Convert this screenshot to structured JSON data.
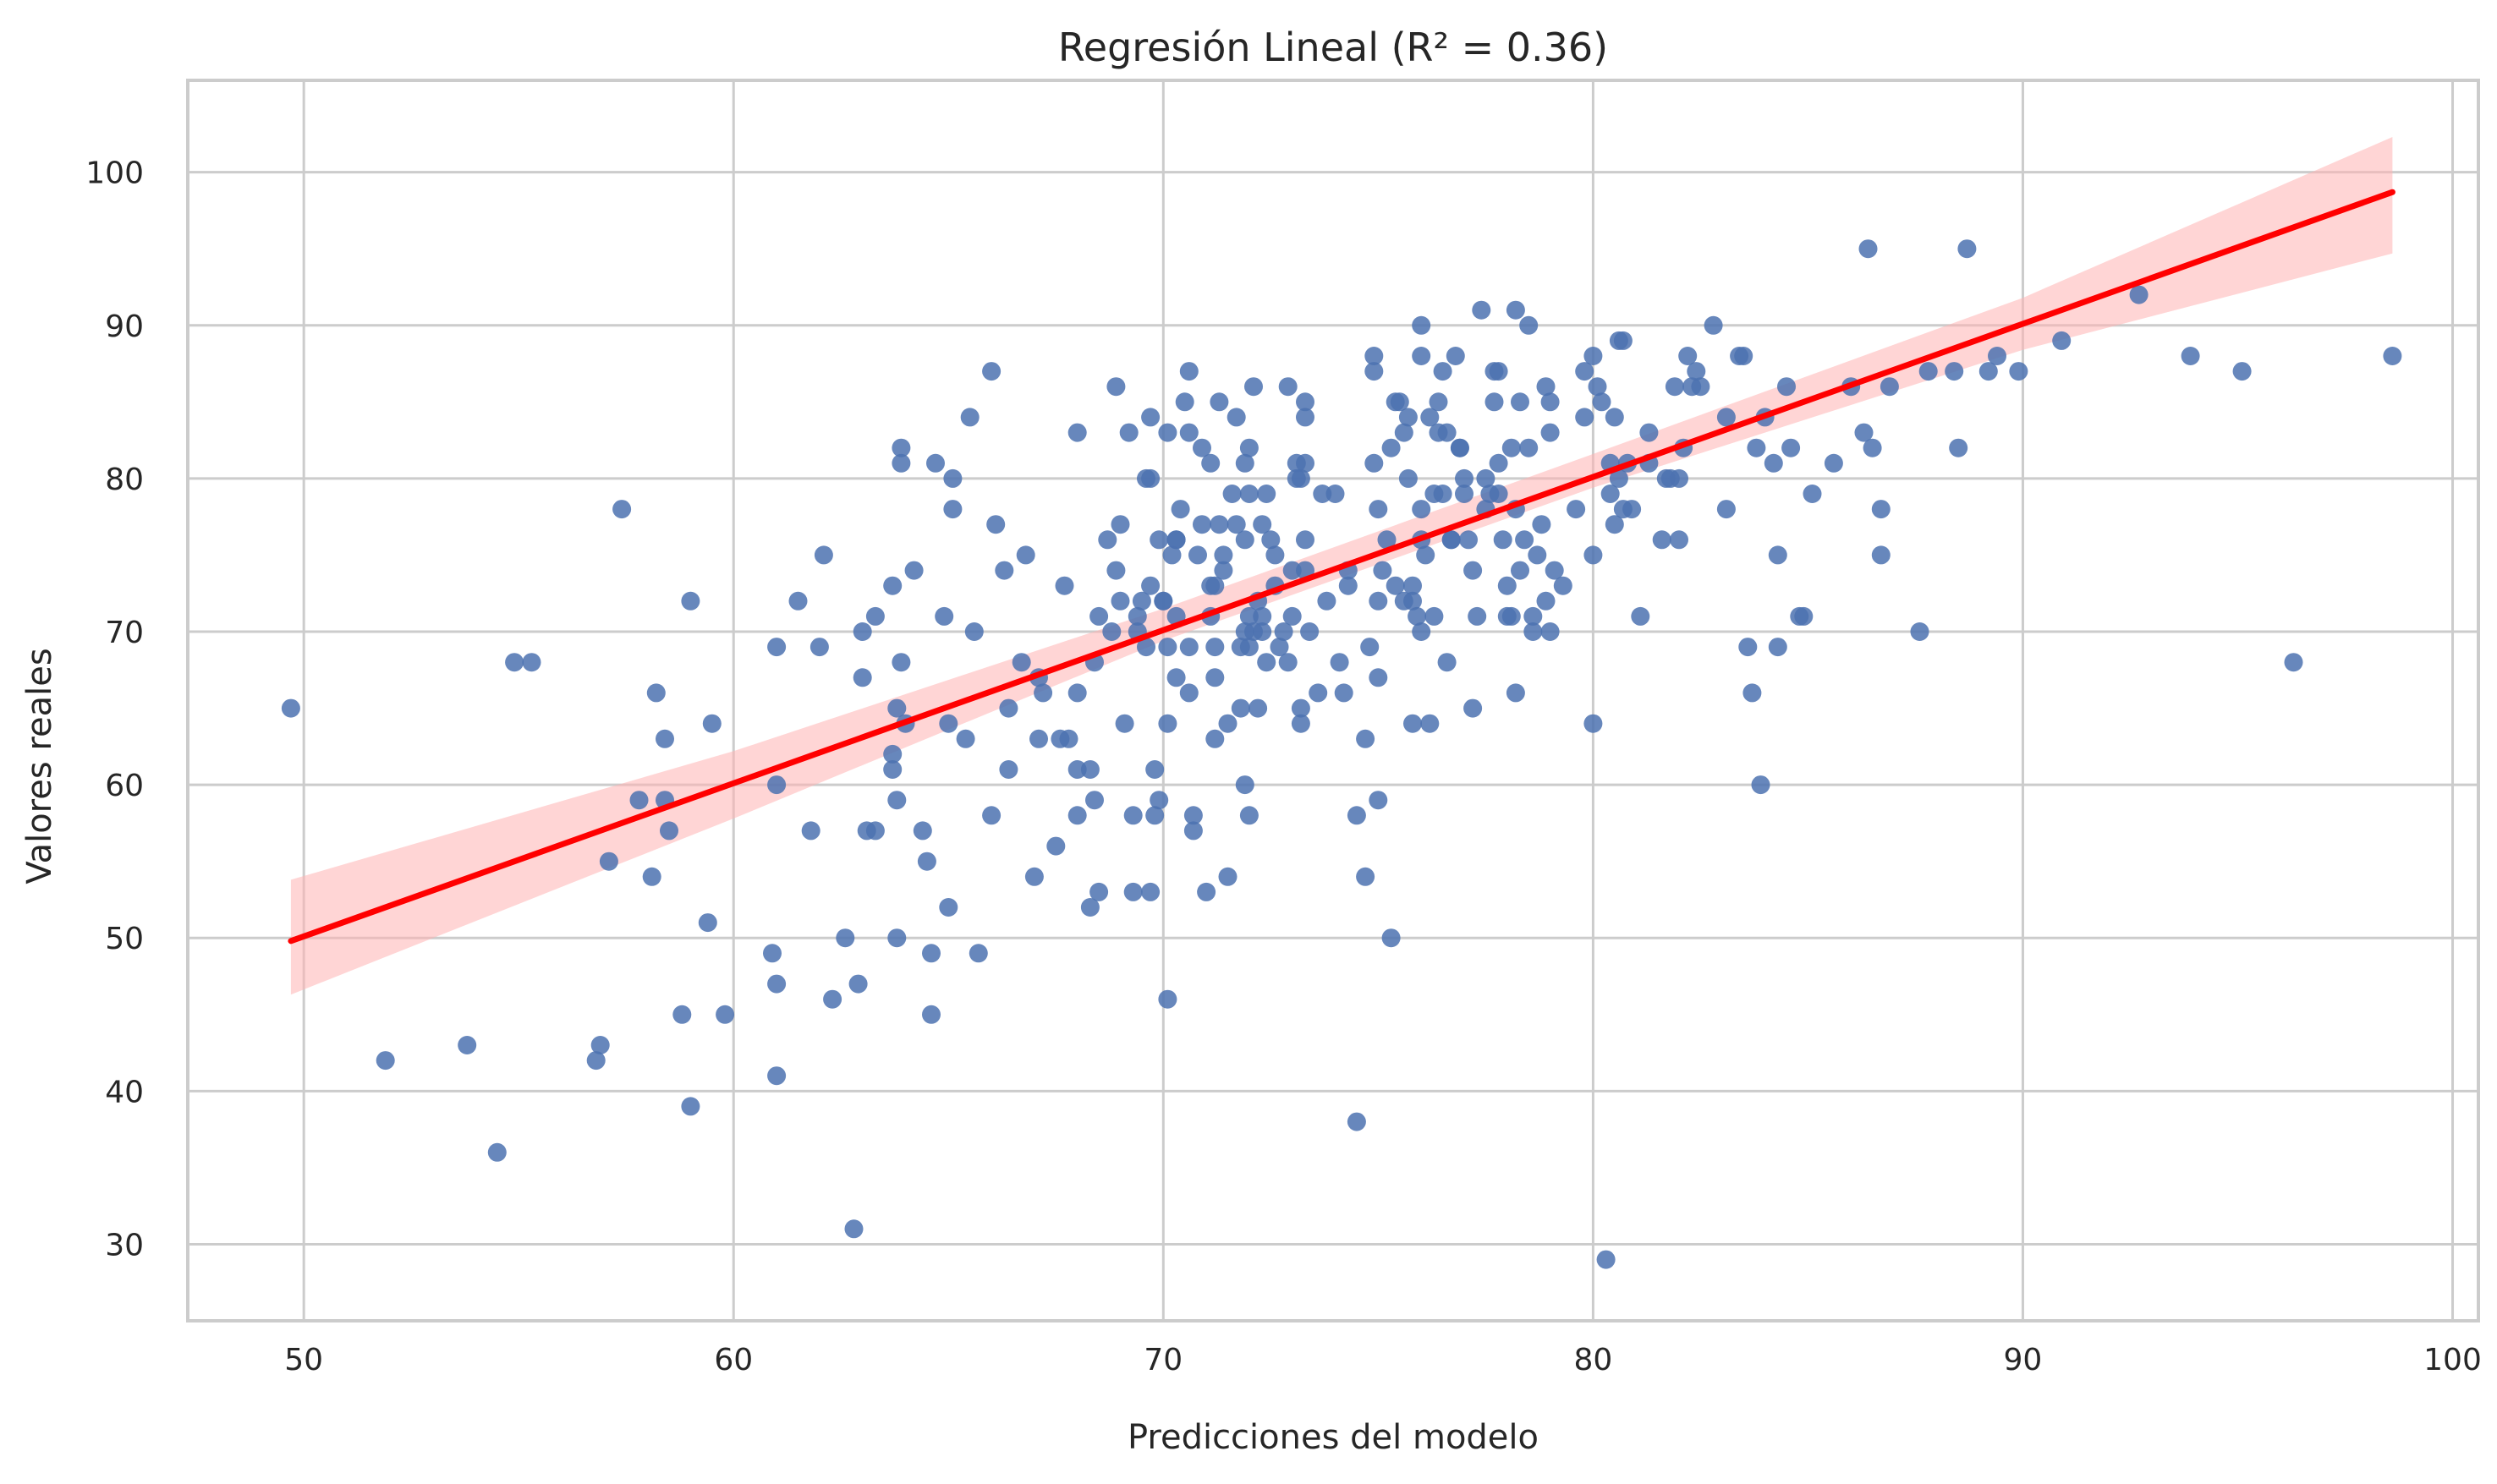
{
  "chart_data": {
    "type": "scatter",
    "title": "Regresión Lineal (R² = 0.36)",
    "xlabel": "Predicciones del modelo",
    "ylabel": "Valores reales",
    "xlim": [
      47.3,
      100.6
    ],
    "ylim": [
      25,
      106
    ],
    "xticks": [
      50,
      60,
      70,
      80,
      90,
      100
    ],
    "yticks": [
      30,
      40,
      50,
      60,
      70,
      80,
      90,
      100
    ],
    "grid": true,
    "colors": {
      "points": "#4c72b0",
      "regression_line": "#ff0000",
      "confidence_band": "#ffb3b3",
      "grid": "#cccccc",
      "frame": "#cccccc"
    },
    "regression_line": {
      "x": [
        49.7,
        98.6
      ],
      "y": [
        49.8,
        98.7
      ]
    },
    "confidence_band": {
      "x": [
        49.7,
        60,
        70,
        80,
        90,
        98.6
      ],
      "lower": [
        46.3,
        57.8,
        69.4,
        79.4,
        88.4,
        94.7
      ],
      "upper": [
        53.8,
        62.2,
        71.5,
        81.6,
        91.8,
        102.3
      ]
    },
    "points": [
      [
        49.7,
        65
      ],
      [
        51.9,
        42
      ],
      [
        53.8,
        43
      ],
      [
        54.5,
        36
      ],
      [
        54.9,
        68
      ],
      [
        55.3,
        68
      ],
      [
        56.8,
        42
      ],
      [
        56.9,
        43
      ],
      [
        57.1,
        55
      ],
      [
        57.4,
        78
      ],
      [
        57.8,
        59
      ],
      [
        58.1,
        54
      ],
      [
        58.2,
        66
      ],
      [
        58.4,
        63
      ],
      [
        58.4,
        59
      ],
      [
        58.5,
        57
      ],
      [
        58.8,
        45
      ],
      [
        59.0,
        72
      ],
      [
        59.0,
        39
      ],
      [
        59.4,
        51
      ],
      [
        59.5,
        64
      ],
      [
        59.8,
        45
      ],
      [
        60.9,
        49
      ],
      [
        61.0,
        60
      ],
      [
        61.0,
        69
      ],
      [
        61.0,
        47
      ],
      [
        61.0,
        41
      ],
      [
        61.5,
        72
      ],
      [
        61.8,
        57
      ],
      [
        62.0,
        69
      ],
      [
        62.1,
        75
      ],
      [
        62.3,
        46
      ],
      [
        62.6,
        50
      ],
      [
        62.8,
        31
      ],
      [
        62.9,
        47
      ],
      [
        63.0,
        70
      ],
      [
        63.0,
        67
      ],
      [
        63.1,
        57
      ],
      [
        63.3,
        71
      ],
      [
        63.3,
        57
      ],
      [
        63.7,
        73
      ],
      [
        63.7,
        62
      ],
      [
        63.7,
        61
      ],
      [
        63.8,
        59
      ],
      [
        63.8,
        50
      ],
      [
        63.8,
        65
      ],
      [
        63.9,
        81
      ],
      [
        63.9,
        82
      ],
      [
        63.9,
        68
      ],
      [
        64.0,
        64
      ],
      [
        64.2,
        74
      ],
      [
        64.4,
        57
      ],
      [
        64.5,
        55
      ],
      [
        64.6,
        49
      ],
      [
        64.6,
        45
      ],
      [
        64.7,
        81
      ],
      [
        64.9,
        71
      ],
      [
        65.0,
        64
      ],
      [
        65.0,
        52
      ],
      [
        65.1,
        80
      ],
      [
        65.1,
        78
      ],
      [
        65.4,
        63
      ],
      [
        65.5,
        84
      ],
      [
        65.6,
        70
      ],
      [
        65.7,
        49
      ],
      [
        66.0,
        58
      ],
      [
        66.0,
        87
      ],
      [
        66.1,
        77
      ],
      [
        66.3,
        74
      ],
      [
        66.4,
        65
      ],
      [
        66.4,
        61
      ],
      [
        66.7,
        68
      ],
      [
        66.8,
        75
      ],
      [
        67.0,
        54
      ],
      [
        67.1,
        63
      ],
      [
        67.1,
        67
      ],
      [
        67.2,
        66
      ],
      [
        67.5,
        56
      ],
      [
        67.6,
        63
      ],
      [
        67.7,
        73
      ],
      [
        67.8,
        63
      ],
      [
        68.0,
        66
      ],
      [
        68.0,
        61
      ],
      [
        68.0,
        58
      ],
      [
        68.0,
        83
      ],
      [
        68.3,
        52
      ],
      [
        68.3,
        61
      ],
      [
        68.4,
        59
      ],
      [
        68.4,
        68
      ],
      [
        68.5,
        53
      ],
      [
        68.5,
        71
      ],
      [
        68.7,
        76
      ],
      [
        68.8,
        70
      ],
      [
        68.9,
        74
      ],
      [
        68.9,
        86
      ],
      [
        69.0,
        77
      ],
      [
        69.0,
        72
      ],
      [
        69.1,
        64
      ],
      [
        69.2,
        83
      ],
      [
        69.3,
        53
      ],
      [
        69.3,
        58
      ],
      [
        69.4,
        70
      ],
      [
        69.4,
        71
      ],
      [
        69.5,
        72
      ],
      [
        69.6,
        69
      ],
      [
        69.6,
        80
      ],
      [
        69.7,
        84
      ],
      [
        69.7,
        80
      ],
      [
        69.7,
        73
      ],
      [
        69.7,
        53
      ],
      [
        69.8,
        61
      ],
      [
        69.8,
        58
      ],
      [
        69.9,
        76
      ],
      [
        69.9,
        59
      ],
      [
        70.0,
        72
      ],
      [
        70.0,
        72
      ],
      [
        70.1,
        69
      ],
      [
        70.1,
        64
      ],
      [
        70.1,
        83
      ],
      [
        70.1,
        46
      ],
      [
        70.2,
        75
      ],
      [
        70.3,
        76
      ],
      [
        70.3,
        67
      ],
      [
        70.3,
        76
      ],
      [
        70.3,
        71
      ],
      [
        70.4,
        78
      ],
      [
        70.5,
        85
      ],
      [
        70.6,
        69
      ],
      [
        70.6,
        66
      ],
      [
        70.6,
        87
      ],
      [
        70.6,
        83
      ],
      [
        70.7,
        58
      ],
      [
        70.7,
        57
      ],
      [
        70.8,
        75
      ],
      [
        70.9,
        77
      ],
      [
        70.9,
        82
      ],
      [
        71.0,
        53
      ],
      [
        71.1,
        73
      ],
      [
        71.1,
        71
      ],
      [
        71.1,
        81
      ],
      [
        71.2,
        73
      ],
      [
        71.2,
        63
      ],
      [
        71.2,
        69
      ],
      [
        71.2,
        67
      ],
      [
        71.3,
        77
      ],
      [
        71.3,
        85
      ],
      [
        71.4,
        75
      ],
      [
        71.4,
        74
      ],
      [
        71.5,
        54
      ],
      [
        71.5,
        64
      ],
      [
        71.6,
        79
      ],
      [
        71.7,
        77
      ],
      [
        71.7,
        84
      ],
      [
        71.8,
        69
      ],
      [
        71.8,
        65
      ],
      [
        71.9,
        76
      ],
      [
        71.9,
        81
      ],
      [
        71.9,
        60
      ],
      [
        71.9,
        70
      ],
      [
        72.0,
        58
      ],
      [
        72.0,
        79
      ],
      [
        72.0,
        82
      ],
      [
        72.0,
        69
      ],
      [
        72.0,
        71
      ],
      [
        72.1,
        70
      ],
      [
        72.1,
        86
      ],
      [
        72.2,
        72
      ],
      [
        72.2,
        65
      ],
      [
        72.3,
        77
      ],
      [
        72.3,
        71
      ],
      [
        72.3,
        70
      ],
      [
        72.4,
        68
      ],
      [
        72.4,
        79
      ],
      [
        72.5,
        76
      ],
      [
        72.6,
        75
      ],
      [
        72.6,
        73
      ],
      [
        72.7,
        69
      ],
      [
        72.8,
        70
      ],
      [
        72.9,
        68
      ],
      [
        72.9,
        86
      ],
      [
        73.0,
        74
      ],
      [
        73.0,
        71
      ],
      [
        73.1,
        81
      ],
      [
        73.1,
        80
      ],
      [
        73.2,
        80
      ],
      [
        73.2,
        65
      ],
      [
        73.2,
        64
      ],
      [
        73.3,
        74
      ],
      [
        73.3,
        84
      ],
      [
        73.3,
        76
      ],
      [
        73.3,
        85
      ],
      [
        73.3,
        81
      ],
      [
        73.4,
        70
      ],
      [
        73.6,
        66
      ],
      [
        73.7,
        79
      ],
      [
        73.8,
        72
      ],
      [
        74.0,
        79
      ],
      [
        74.1,
        68
      ],
      [
        74.2,
        66
      ],
      [
        74.3,
        74
      ],
      [
        74.3,
        73
      ],
      [
        74.5,
        38
      ],
      [
        74.5,
        58
      ],
      [
        74.7,
        54
      ],
      [
        74.7,
        63
      ],
      [
        74.8,
        69
      ],
      [
        74.9,
        81
      ],
      [
        74.9,
        87
      ],
      [
        74.9,
        88
      ],
      [
        75.0,
        67
      ],
      [
        75.0,
        72
      ],
      [
        75.0,
        59
      ],
      [
        75.0,
        78
      ],
      [
        75.1,
        74
      ],
      [
        75.2,
        76
      ],
      [
        75.3,
        50
      ],
      [
        75.3,
        82
      ],
      [
        75.4,
        73
      ],
      [
        75.4,
        85
      ],
      [
        75.5,
        85
      ],
      [
        75.6,
        83
      ],
      [
        75.6,
        72
      ],
      [
        75.7,
        84
      ],
      [
        75.7,
        80
      ],
      [
        75.8,
        73
      ],
      [
        75.8,
        72
      ],
      [
        75.8,
        64
      ],
      [
        75.9,
        71
      ],
      [
        76.0,
        70
      ],
      [
        76.0,
        78
      ],
      [
        76.0,
        90
      ],
      [
        76.0,
        88
      ],
      [
        76.0,
        76
      ],
      [
        76.1,
        75
      ],
      [
        76.2,
        64
      ],
      [
        76.2,
        84
      ],
      [
        76.3,
        71
      ],
      [
        76.3,
        79
      ],
      [
        76.4,
        85
      ],
      [
        76.4,
        83
      ],
      [
        76.5,
        79
      ],
      [
        76.5,
        87
      ],
      [
        76.6,
        68
      ],
      [
        76.6,
        83
      ],
      [
        76.7,
        76
      ],
      [
        76.7,
        76
      ],
      [
        76.8,
        88
      ],
      [
        76.9,
        82
      ],
      [
        76.9,
        82
      ],
      [
        77.0,
        80
      ],
      [
        77.0,
        79
      ],
      [
        77.1,
        76
      ],
      [
        77.2,
        74
      ],
      [
        77.2,
        65
      ],
      [
        77.3,
        71
      ],
      [
        77.4,
        91
      ],
      [
        77.5,
        80
      ],
      [
        77.5,
        78
      ],
      [
        77.6,
        79
      ],
      [
        77.7,
        87
      ],
      [
        77.7,
        85
      ],
      [
        77.8,
        81
      ],
      [
        77.8,
        87
      ],
      [
        77.8,
        79
      ],
      [
        77.9,
        76
      ],
      [
        78.0,
        73
      ],
      [
        78.0,
        71
      ],
      [
        78.1,
        71
      ],
      [
        78.1,
        82
      ],
      [
        78.2,
        66
      ],
      [
        78.2,
        78
      ],
      [
        78.2,
        91
      ],
      [
        78.3,
        85
      ],
      [
        78.3,
        74
      ],
      [
        78.4,
        76
      ],
      [
        78.5,
        82
      ],
      [
        78.5,
        90
      ],
      [
        78.6,
        71
      ],
      [
        78.6,
        70
      ],
      [
        78.7,
        75
      ],
      [
        78.8,
        77
      ],
      [
        78.9,
        86
      ],
      [
        78.9,
        72
      ],
      [
        79.0,
        83
      ],
      [
        79.0,
        70
      ],
      [
        79.0,
        85
      ],
      [
        79.1,
        74
      ],
      [
        79.3,
        73
      ],
      [
        79.6,
        78
      ],
      [
        79.8,
        87
      ],
      [
        79.8,
        84
      ],
      [
        80.0,
        75
      ],
      [
        80.0,
        88
      ],
      [
        80.0,
        64
      ],
      [
        80.1,
        86
      ],
      [
        80.2,
        85
      ],
      [
        80.3,
        29
      ],
      [
        80.4,
        79
      ],
      [
        80.4,
        81
      ],
      [
        80.5,
        84
      ],
      [
        80.5,
        77
      ],
      [
        80.6,
        80
      ],
      [
        80.6,
        89
      ],
      [
        80.7,
        89
      ],
      [
        80.7,
        78
      ],
      [
        80.8,
        81
      ],
      [
        80.9,
        78
      ],
      [
        81.1,
        71
      ],
      [
        81.3,
        81
      ],
      [
        81.3,
        83
      ],
      [
        81.6,
        76
      ],
      [
        81.7,
        80
      ],
      [
        81.8,
        80
      ],
      [
        81.9,
        86
      ],
      [
        82.0,
        76
      ],
      [
        82.0,
        80
      ],
      [
        82.1,
        82
      ],
      [
        82.2,
        88
      ],
      [
        82.3,
        86
      ],
      [
        82.4,
        87
      ],
      [
        82.5,
        86
      ],
      [
        82.8,
        90
      ],
      [
        83.1,
        84
      ],
      [
        83.1,
        78
      ],
      [
        83.4,
        88
      ],
      [
        83.5,
        88
      ],
      [
        83.6,
        69
      ],
      [
        83.7,
        66
      ],
      [
        83.8,
        82
      ],
      [
        83.9,
        60
      ],
      [
        84.0,
        84
      ],
      [
        84.2,
        81
      ],
      [
        84.3,
        69
      ],
      [
        84.3,
        75
      ],
      [
        84.5,
        86
      ],
      [
        84.6,
        82
      ],
      [
        84.8,
        71
      ],
      [
        84.9,
        71
      ],
      [
        85.1,
        79
      ],
      [
        85.6,
        81
      ],
      [
        86.0,
        86
      ],
      [
        86.3,
        83
      ],
      [
        86.4,
        95
      ],
      [
        86.5,
        82
      ],
      [
        86.7,
        78
      ],
      [
        86.7,
        75
      ],
      [
        86.9,
        86
      ],
      [
        87.6,
        70
      ],
      [
        87.8,
        87
      ],
      [
        88.4,
        87
      ],
      [
        88.5,
        82
      ],
      [
        88.7,
        95
      ],
      [
        89.2,
        87
      ],
      [
        89.4,
        88
      ],
      [
        89.9,
        87
      ],
      [
        90.9,
        89
      ],
      [
        92.7,
        92
      ],
      [
        93.9,
        88
      ],
      [
        95.1,
        87
      ],
      [
        96.3,
        68
      ],
      [
        98.6,
        88
      ]
    ]
  }
}
